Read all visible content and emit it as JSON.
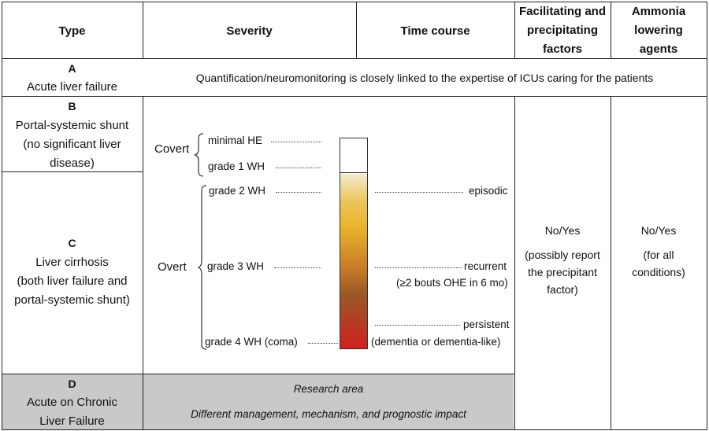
{
  "headers": {
    "type": "Type",
    "severity": "Severity",
    "time_course": "Time course",
    "factors_l1": "Facilitating and",
    "factors_l2": "precipitating",
    "factors_l3": "factors",
    "ammonia_l1": "Ammonia",
    "ammonia_l2": "lowering",
    "ammonia_l3": "agents"
  },
  "row_a": {
    "letter": "A",
    "name": "Acute liver failure",
    "note": "Quantification/neuromonitoring is closely linked to the expertise of ICUs caring for the patients"
  },
  "row_b": {
    "letter": "B",
    "l1": "Portal-systemic shunt",
    "l2": "(no significant liver",
    "l3": "disease)"
  },
  "row_c": {
    "letter": "C",
    "l1": "Liver cirrhosis",
    "l2": "(both liver failure and",
    "l3": "portal-systemic shunt)"
  },
  "row_d": {
    "letter": "D",
    "l1": "Acute on Chronic",
    "l2": "Liver Failure",
    "research": "Research area",
    "research_note": "Different management, mechanism, and prognostic impact"
  },
  "severity": {
    "covert": "Covert",
    "overt": "Overt",
    "minimal": "minimal HE",
    "grade1": "grade 1 WH",
    "grade2": "grade 2 WH",
    "grade3": "grade 3 WH",
    "grade4": "grade 4 WH (coma)"
  },
  "time_course": {
    "episodic": "episodic",
    "recurrent": "recurrent",
    "recurrent_note": "(≥2 bouts OHE in 6 mo)",
    "persistent": "persistent",
    "persistent_note": "(dementia or dementia-like)"
  },
  "factors": {
    "answer": "No/Yes",
    "note_l1": "(possibly report",
    "note_l2": "the precipitant",
    "note_l3": "factor)"
  },
  "ammonia": {
    "answer": "No/Yes",
    "note_l1": "(for all",
    "note_l2": "conditions)"
  },
  "colors": {
    "border": "#222222",
    "gray_fill": "#c9c9c9",
    "gradient_top": "#f3ead0",
    "gradient_mid": "#e8b42a",
    "gradient_brown": "#9a5a26",
    "gradient_bottom": "#d12020"
  }
}
